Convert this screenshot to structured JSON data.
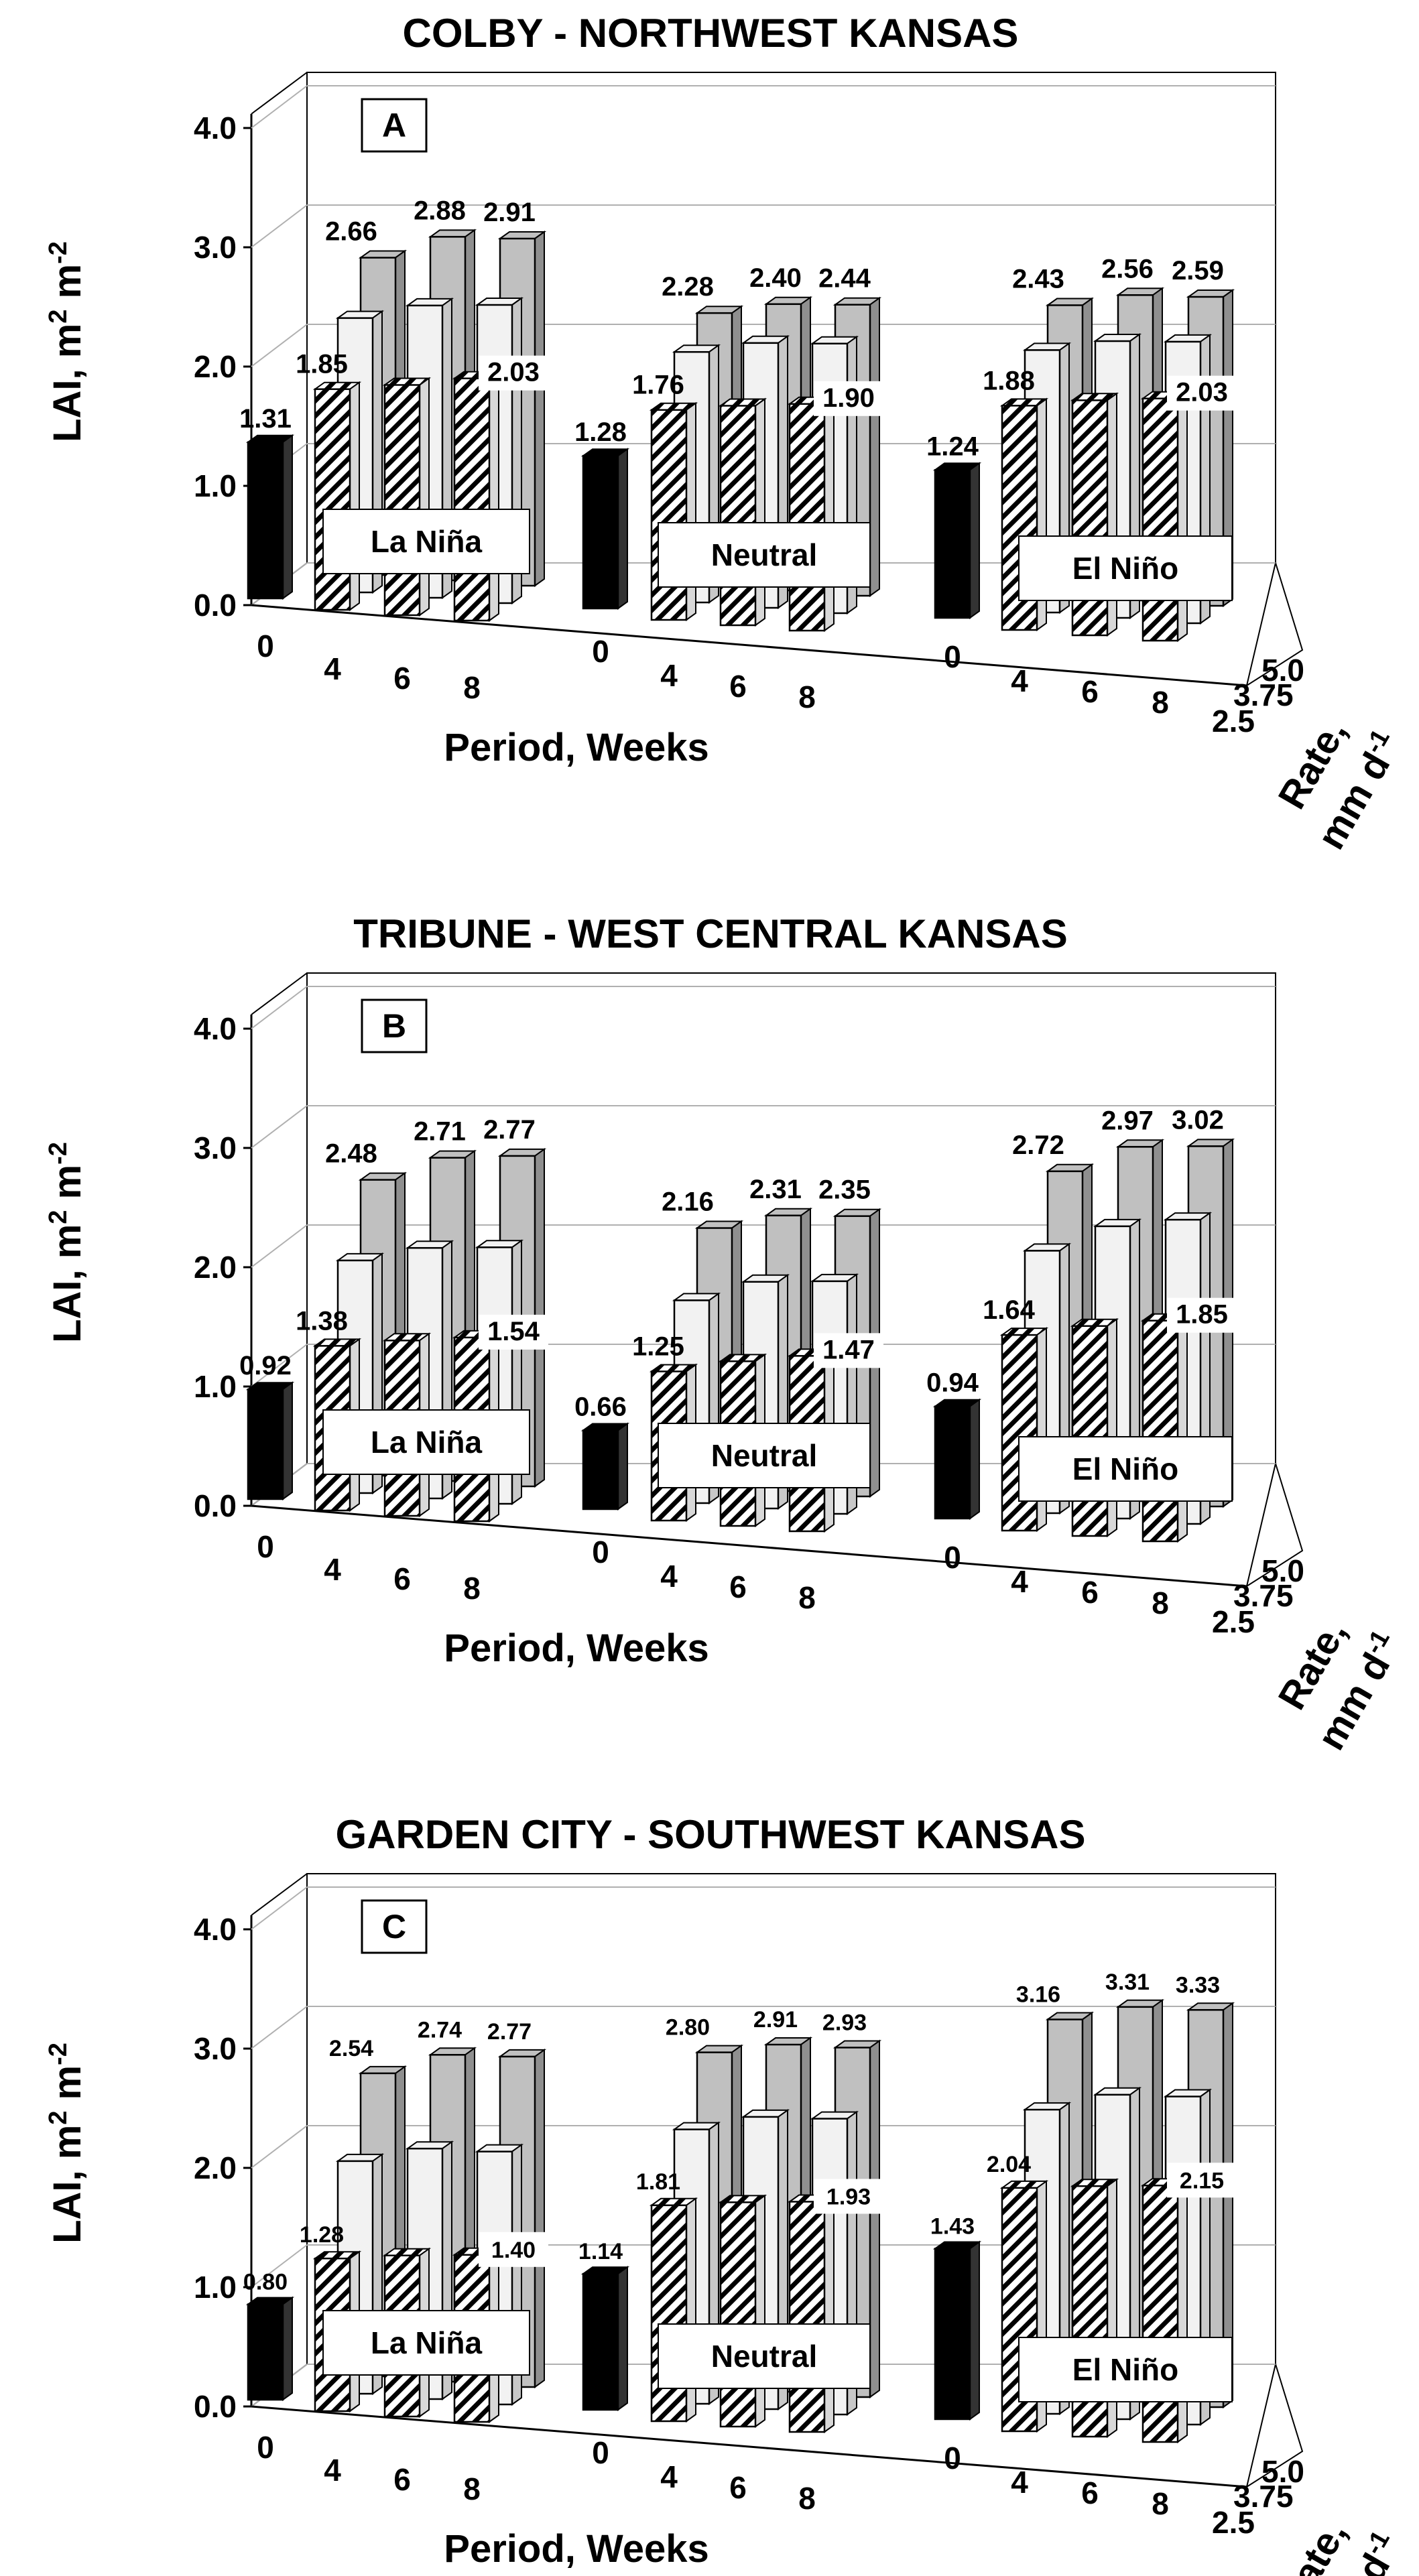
{
  "chart_data": [
    {
      "type": "bar",
      "title": "COLBY - NORTHWEST KANSAS",
      "panel": "A",
      "ylabel": "LAI, m",
      "ylabel_sup1": "2",
      "ylabel_mid": " m",
      "ylabel_sup2": "-2",
      "xlabel": "Period, Weeks",
      "zlabel": "Rate,",
      "zlabel2": "mm d",
      "zlabel2_sup": "-1",
      "ylim": [
        0,
        4.0
      ],
      "yticks": [
        "0.0",
        "1.0",
        "2.0",
        "3.0",
        "4.0"
      ],
      "rate_labels": [
        "2.5",
        "3.75",
        "5.0"
      ],
      "groups": [
        {
          "name": "La Niña",
          "periods": [
            "0",
            "4",
            "6",
            "8"
          ],
          "control": 1.31,
          "series": [
            {
              "rate": "2.5",
              "values": [
                1.85,
                1.93,
                2.03
              ]
            },
            {
              "rate": "3.75",
              "values": [
                2.3,
                2.45,
                2.5
              ]
            },
            {
              "rate": "5.0",
              "values": [
                2.66,
                2.88,
                2.91
              ]
            }
          ],
          "labels": [
            "1.31",
            "1.85",
            "2.03",
            "2.66",
            "2.88",
            "2.91"
          ]
        },
        {
          "name": "Neutral",
          "periods": [
            "0",
            "4",
            "6",
            "8"
          ],
          "control": 1.28,
          "series": [
            {
              "rate": "2.5",
              "values": [
                1.76,
                1.84,
                1.9
              ]
            },
            {
              "rate": "3.75",
              "values": [
                2.1,
                2.22,
                2.26
              ]
            },
            {
              "rate": "5.0",
              "values": [
                2.28,
                2.4,
                2.44
              ]
            }
          ],
          "labels": [
            "1.28",
            "1.76",
            "1.90",
            "2.28",
            "2.40",
            "2.44"
          ]
        },
        {
          "name": "El Niño",
          "periods": [
            "0",
            "4",
            "6",
            "8"
          ],
          "control": 1.24,
          "series": [
            {
              "rate": "2.5",
              "values": [
                1.88,
                1.97,
                2.03
              ]
            },
            {
              "rate": "3.75",
              "values": [
                2.2,
                2.32,
                2.36
              ]
            },
            {
              "rate": "5.0",
              "values": [
                2.43,
                2.56,
                2.59
              ]
            }
          ],
          "labels": [
            "1.24",
            "1.88",
            "2.03",
            "2.43",
            "2.56",
            "2.59"
          ]
        }
      ]
    },
    {
      "type": "bar",
      "title": "TRIBUNE - WEST CENTRAL KANSAS",
      "panel": "B",
      "ylabel": "LAI, m",
      "ylabel_sup1": "2",
      "ylabel_mid": " m",
      "ylabel_sup2": "-2",
      "xlabel": "Period, Weeks",
      "zlabel": "Rate,",
      "zlabel2": "mm d",
      "zlabel2_sup": "-1",
      "ylim": [
        0,
        4.0
      ],
      "yticks": [
        "0.0",
        "1.0",
        "2.0",
        "3.0",
        "4.0"
      ],
      "rate_labels": [
        "2.5",
        "3.75",
        "5.0"
      ],
      "groups": [
        {
          "name": "La Niña",
          "periods": [
            "0",
            "4",
            "6",
            "8"
          ],
          "control": 0.92,
          "series": [
            {
              "rate": "2.5",
              "values": [
                1.38,
                1.47,
                1.54
              ]
            },
            {
              "rate": "3.75",
              "values": [
                1.95,
                2.1,
                2.15
              ]
            },
            {
              "rate": "5.0",
              "values": [
                2.48,
                2.71,
                2.77
              ]
            }
          ],
          "labels": [
            "0.92",
            "1.38",
            "1.54",
            "2.48",
            "2.71",
            "2.77"
          ]
        },
        {
          "name": "Neutral",
          "periods": [
            "0",
            "4",
            "6",
            "8"
          ],
          "control": 0.66,
          "series": [
            {
              "rate": "2.5",
              "values": [
                1.25,
                1.38,
                1.47
              ]
            },
            {
              "rate": "3.75",
              "values": [
                1.7,
                1.9,
                1.95
              ]
            },
            {
              "rate": "5.0",
              "values": [
                2.16,
                2.31,
                2.35
              ]
            }
          ],
          "labels": [
            "0.66",
            "1.25",
            "1.47",
            "2.16",
            "2.31",
            "2.35"
          ]
        },
        {
          "name": "El Niño",
          "periods": [
            "0",
            "4",
            "6",
            "8"
          ],
          "control": 0.94,
          "series": [
            {
              "rate": "2.5",
              "values": [
                1.64,
                1.76,
                1.85
              ]
            },
            {
              "rate": "3.75",
              "values": [
                2.2,
                2.45,
                2.55
              ]
            },
            {
              "rate": "5.0",
              "values": [
                2.72,
                2.97,
                3.02
              ]
            }
          ],
          "labels": [
            "0.94",
            "1.64",
            "1.85",
            "2.72",
            "2.97",
            "3.02"
          ]
        }
      ]
    },
    {
      "type": "bar",
      "title": "GARDEN CITY - SOUTHWEST KANSAS",
      "panel": "C",
      "ylabel": "LAI, m",
      "ylabel_sup1": "2",
      "ylabel_mid": " m",
      "ylabel_sup2": "-2",
      "xlabel": "Period, Weeks",
      "zlabel": "Rate,",
      "zlabel2": "mm d",
      "zlabel2_sup": "-1",
      "ylim": [
        0,
        4.0
      ],
      "yticks": [
        "0.0",
        "1.0",
        "2.0",
        "3.0",
        "4.0"
      ],
      "rate_labels": [
        "2.5",
        "3.75",
        "5.0"
      ],
      "groups": [
        {
          "name": "La Niña",
          "periods": [
            "0",
            "4",
            "6",
            "8"
          ],
          "control": 0.8,
          "series": [
            {
              "rate": "2.5",
              "values": [
                1.28,
                1.35,
                1.4
              ]
            },
            {
              "rate": "3.75",
              "values": [
                1.95,
                2.1,
                2.12
              ]
            },
            {
              "rate": "5.0",
              "values": [
                2.54,
                2.74,
                2.77
              ]
            }
          ],
          "labels": [
            "0.80",
            "1.28",
            "1.40",
            "2.54",
            "2.74",
            "2.77"
          ]
        },
        {
          "name": "Neutral",
          "periods": [
            "0",
            "4",
            "6",
            "8"
          ],
          "control": 1.14,
          "series": [
            {
              "rate": "2.5",
              "values": [
                1.81,
                1.88,
                1.93
              ]
            },
            {
              "rate": "3.75",
              "values": [
                2.3,
                2.45,
                2.48
              ]
            },
            {
              "rate": "5.0",
              "values": [
                2.8,
                2.91,
                2.93
              ]
            }
          ],
          "labels": [
            "1.14",
            "1.81",
            "1.93",
            "2.80",
            "2.91",
            "2.93"
          ]
        },
        {
          "name": "El Niño",
          "periods": [
            "0",
            "4",
            "6",
            "8"
          ],
          "control": 1.43,
          "series": [
            {
              "rate": "2.5",
              "values": [
                2.04,
                2.1,
                2.15
              ]
            },
            {
              "rate": "3.75",
              "values": [
                2.55,
                2.72,
                2.75
              ]
            },
            {
              "rate": "5.0",
              "values": [
                3.16,
                3.31,
                3.33
              ]
            }
          ],
          "labels": [
            "1.43",
            "2.04",
            "2.15",
            "3.16",
            "3.31",
            "3.33"
          ]
        }
      ]
    }
  ],
  "colors": {
    "control": "#000000",
    "rate_2_5": "#ffffff",
    "rate_3_75": "#f2f2f2",
    "rate_5_0": "#c0c0c0",
    "axis": "#000000",
    "grid": "#b0b0b0"
  }
}
